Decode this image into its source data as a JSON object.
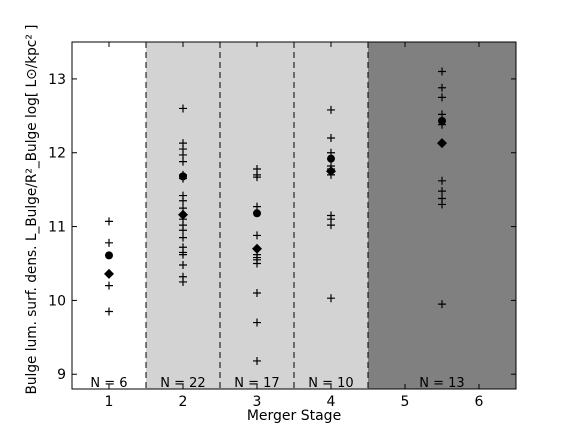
{
  "chart_data": {
    "type": "scatter",
    "xlabel": "Merger Stage",
    "ylabel": "Bulge lum. surf. dens. L_Bulge/R²_Bulge  log[ L⊙/kpc² ]",
    "xlim": [
      0.5,
      6.5
    ],
    "ylim": [
      8.8,
      13.5
    ],
    "x_ticks": [
      "1",
      "2",
      "3",
      "4",
      "5",
      "6"
    ],
    "y_ticks": [
      "9",
      "10",
      "11",
      "12",
      "13"
    ],
    "grid": false,
    "legend": "none",
    "colors": {
      "light_region": "#d3d3d3",
      "dark_region": "#808080",
      "marker": "#000000"
    },
    "regions": [
      {
        "from": 0.5,
        "to": 1.5,
        "shade": "white",
        "n_label": "N = 6"
      },
      {
        "from": 1.5,
        "to": 2.5,
        "shade": "light",
        "n_label": "N = 22"
      },
      {
        "from": 2.5,
        "to": 3.5,
        "shade": "light",
        "n_label": "N = 17"
      },
      {
        "from": 3.5,
        "to": 4.5,
        "shade": "light",
        "n_label": "N = 10"
      },
      {
        "from": 4.5,
        "to": 6.5,
        "shade": "dark",
        "n_label": "N = 13"
      }
    ],
    "series": [
      {
        "marker": "plus",
        "points": [
          {
            "x": 1,
            "y": 11.07
          },
          {
            "x": 1,
            "y": 10.78
          },
          {
            "x": 1,
            "y": 10.2
          },
          {
            "x": 1,
            "y": 9.85
          },
          {
            "x": 2,
            "y": 12.6
          },
          {
            "x": 2,
            "y": 12.13
          },
          {
            "x": 2,
            "y": 12.05
          },
          {
            "x": 2,
            "y": 11.97
          },
          {
            "x": 2,
            "y": 11.88
          },
          {
            "x": 2,
            "y": 11.7
          },
          {
            "x": 2,
            "y": 11.65
          },
          {
            "x": 2,
            "y": 11.42
          },
          {
            "x": 2,
            "y": 11.35
          },
          {
            "x": 2,
            "y": 11.25
          },
          {
            "x": 2,
            "y": 11.1
          },
          {
            "x": 2,
            "y": 11.02
          },
          {
            "x": 2,
            "y": 10.95
          },
          {
            "x": 2,
            "y": 10.85
          },
          {
            "x": 2,
            "y": 10.72
          },
          {
            "x": 2,
            "y": 10.65
          },
          {
            "x": 2,
            "y": 10.62
          },
          {
            "x": 2,
            "y": 10.48
          },
          {
            "x": 2,
            "y": 10.32
          },
          {
            "x": 2,
            "y": 10.25
          },
          {
            "x": 3,
            "y": 11.78
          },
          {
            "x": 3,
            "y": 11.7
          },
          {
            "x": 3,
            "y": 11.67
          },
          {
            "x": 3,
            "y": 11.27
          },
          {
            "x": 3,
            "y": 10.88
          },
          {
            "x": 3,
            "y": 10.7
          },
          {
            "x": 3,
            "y": 10.62
          },
          {
            "x": 3,
            "y": 10.58
          },
          {
            "x": 3,
            "y": 10.55
          },
          {
            "x": 3,
            "y": 10.5
          },
          {
            "x": 3,
            "y": 10.1
          },
          {
            "x": 3,
            "y": 9.7
          },
          {
            "x": 3,
            "y": 9.18
          },
          {
            "x": 4,
            "y": 12.58
          },
          {
            "x": 4,
            "y": 12.2
          },
          {
            "x": 4,
            "y": 12.0
          },
          {
            "x": 4,
            "y": 11.82
          },
          {
            "x": 4,
            "y": 11.78
          },
          {
            "x": 4,
            "y": 11.7
          },
          {
            "x": 4,
            "y": 11.15
          },
          {
            "x": 4,
            "y": 11.1
          },
          {
            "x": 4,
            "y": 11.02
          },
          {
            "x": 4,
            "y": 10.03
          },
          {
            "x": 5.5,
            "y": 13.1
          },
          {
            "x": 5.5,
            "y": 12.88
          },
          {
            "x": 5.5,
            "y": 12.75
          },
          {
            "x": 5.5,
            "y": 12.52
          },
          {
            "x": 5.5,
            "y": 12.38
          },
          {
            "x": 5.5,
            "y": 11.62
          },
          {
            "x": 5.5,
            "y": 11.48
          },
          {
            "x": 5.5,
            "y": 11.38
          },
          {
            "x": 5.5,
            "y": 11.3
          },
          {
            "x": 5.5,
            "y": 9.95
          }
        ]
      },
      {
        "marker": "circle",
        "points": [
          {
            "x": 1,
            "y": 10.61
          },
          {
            "x": 2,
            "y": 11.68
          },
          {
            "x": 3,
            "y": 11.18
          },
          {
            "x": 4,
            "y": 11.92
          },
          {
            "x": 5.5,
            "y": 12.43
          }
        ]
      },
      {
        "marker": "diamond",
        "points": [
          {
            "x": 1,
            "y": 10.36
          },
          {
            "x": 2,
            "y": 11.16
          },
          {
            "x": 3,
            "y": 10.7
          },
          {
            "x": 4,
            "y": 11.75
          },
          {
            "x": 5.5,
            "y": 12.13
          }
        ]
      }
    ]
  }
}
